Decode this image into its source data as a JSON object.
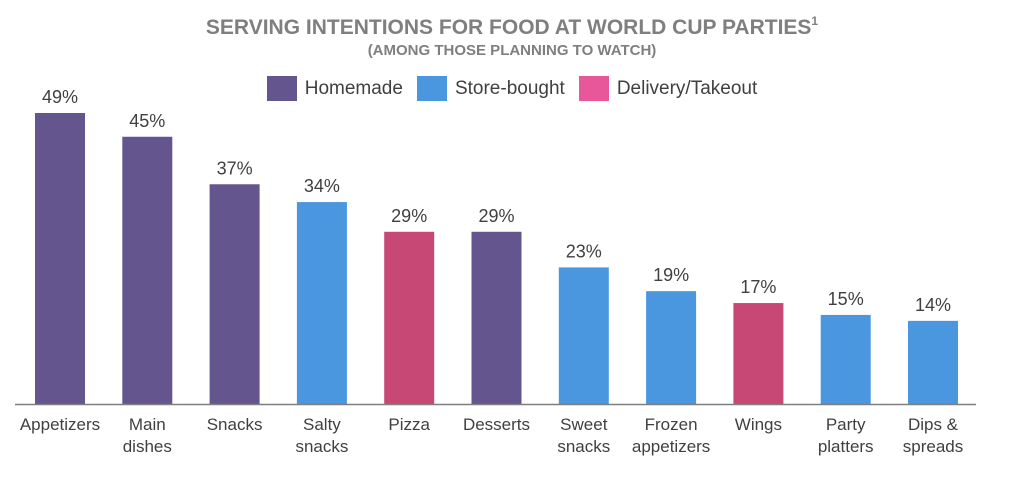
{
  "chart_data": {
    "type": "bar",
    "title": "SERVING INTENTIONS FOR FOOD AT WORLD CUP PARTIES",
    "title_superscript": "1",
    "subtitle": "(AMONG THOSE PLANNING TO WATCH)",
    "xlabel": "",
    "ylabel": "",
    "ylim": [
      0,
      50
    ],
    "grid": false,
    "legend_placement": "top",
    "legend": [
      {
        "name": "Homemade",
        "color": "#65558F"
      },
      {
        "name": "Store-bought",
        "color": "#4A97E0"
      },
      {
        "name": "Delivery/Takeout",
        "color": "#E8579A"
      }
    ],
    "categories": [
      [
        "Appetizers"
      ],
      [
        "Main",
        "dishes"
      ],
      [
        "Snacks"
      ],
      [
        "Salty",
        "snacks"
      ],
      [
        "Pizza"
      ],
      [
        "Desserts"
      ],
      [
        "Sweet",
        "snacks"
      ],
      [
        "Frozen",
        "appetizers"
      ],
      [
        "Wings"
      ],
      [
        "Party",
        "platters"
      ],
      [
        "Dips &",
        "spreads"
      ]
    ],
    "values": [
      49,
      45,
      37,
      34,
      29,
      29,
      23,
      19,
      17,
      15,
      14
    ],
    "data_labels": [
      "49%",
      "45%",
      "37%",
      "34%",
      "29%",
      "29%",
      "23%",
      "19%",
      "17%",
      "15%",
      "14%"
    ],
    "bar_type": [
      "Homemade",
      "Homemade",
      "Homemade",
      "Store-bought",
      "Delivery/Takeout",
      "Homemade",
      "Store-bought",
      "Store-bought",
      "Delivery/Takeout",
      "Store-bought",
      "Store-bought"
    ],
    "bar_colors": {
      "Homemade": "#65558F",
      "Store-bought": "#4A97E0",
      "Delivery/Takeout": "#C74875"
    }
  }
}
